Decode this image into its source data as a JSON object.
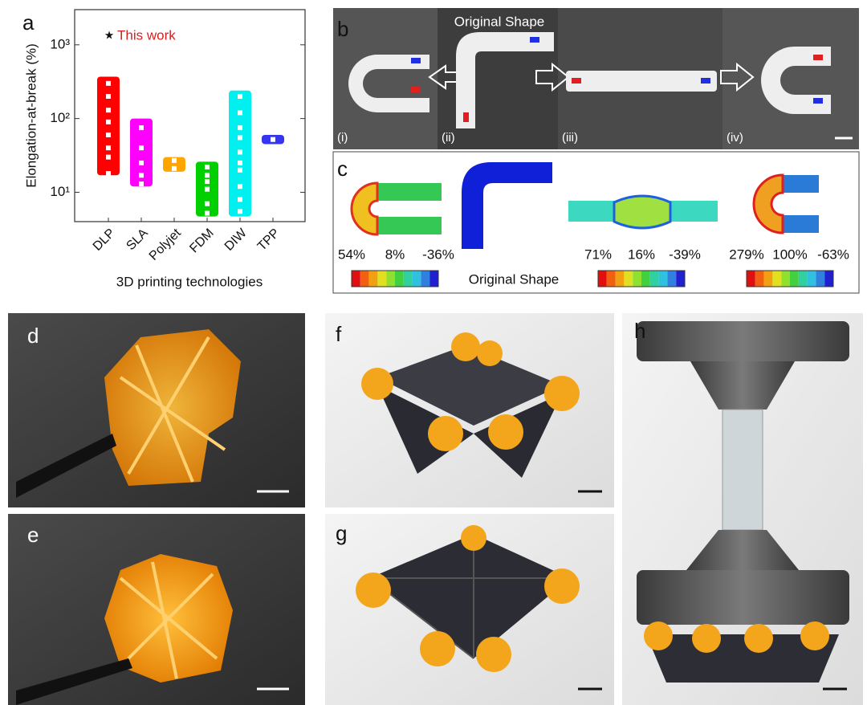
{
  "chart_data": {
    "type": "range-bar",
    "y_label": "Elongation-at-break (%)",
    "x_label": "3D printing technologies",
    "annotation": "This work",
    "annotation_color": "#d62020",
    "categories": [
      "DLP",
      "SLA",
      "Polyjet",
      "FDM",
      "DIW",
      "TPP"
    ],
    "colors": [
      "#ff0000",
      "#ff00ff",
      "#ffa500",
      "#00d000",
      "#00f0f0",
      "#3535f0"
    ],
    "low": [
      17,
      12,
      19,
      4.7,
      4.7,
      45
    ],
    "high": [
      370,
      100,
      30,
      26,
      240,
      60
    ],
    "points": [
      [
        300,
        200,
        130,
        90,
        60,
        40,
        30,
        18
      ],
      [
        75,
        40,
        25,
        17,
        13
      ],
      [
        27,
        21
      ],
      [
        22,
        17,
        14,
        11,
        7,
        5.2
      ],
      [
        200,
        120,
        75,
        55,
        35,
        25,
        20,
        12,
        8,
        5.5
      ],
      [
        52
      ]
    ],
    "log_y": true,
    "ylim": [
      4,
      3000
    ],
    "yticks": [
      {
        "value": 10,
        "label": "10¹"
      },
      {
        "value": 100,
        "label": "10²"
      },
      {
        "value": 1000,
        "label": "10³"
      }
    ]
  },
  "panels": {
    "letters": [
      "a",
      "b",
      "c",
      "d",
      "e",
      "f",
      "g",
      "h"
    ],
    "b": {
      "title": "Original Shape",
      "labels": [
        "(i)",
        "(ii)",
        "(iii)",
        "(iv)"
      ]
    },
    "c": {
      "caption": "Original Shape",
      "colorbars": [
        [
          "54%",
          "8%",
          "-36%"
        ],
        [
          "71%",
          "16%",
          "-39%"
        ],
        [
          "279%",
          "100%",
          "-63%"
        ]
      ]
    }
  }
}
